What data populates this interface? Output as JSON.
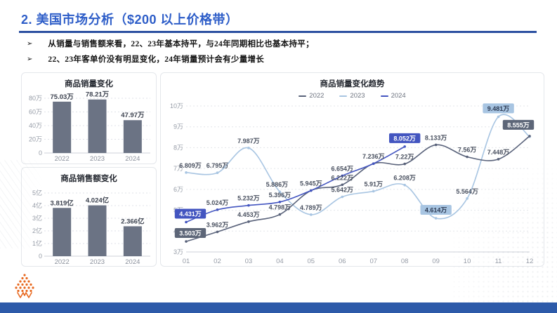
{
  "header": {
    "title": "2. 美国市场分析（$200 以上价格带）"
  },
  "bullets": [
    {
      "marker": "➢",
      "text": "从销量与销售额来看，22、23年基本持平，与24年同期相比也基本持平；"
    },
    {
      "marker": "➢",
      "text": "22、23年客单价没有明显变化，24年销量预计会有少量增长"
    }
  ],
  "colors": {
    "title_blue": "#2d5dc8",
    "rule_blue": "#2b4fa0",
    "footer_blue": "#2d5aa9",
    "bar_fill": "#6b7384",
    "logo_orange": "#e8681f",
    "series_2022": "#59627a",
    "series_2023": "#a8c5e2",
    "series_2024": "#4355c0"
  },
  "chart_data": [
    {
      "type": "bar",
      "title": "商品销量变化",
      "categories": [
        "2022",
        "2023",
        "2024"
      ],
      "values": [
        75.03,
        78.21,
        47.97
      ],
      "bar_labels": [
        "75.03万",
        "78.21万",
        "47.97万"
      ],
      "ymax": 80,
      "yticks": [
        {
          "v": 0,
          "label": "0"
        },
        {
          "v": 20,
          "label": "20万"
        },
        {
          "v": 40,
          "label": "40万"
        },
        {
          "v": 60,
          "label": "60万"
        },
        {
          "v": 80,
          "label": "80万"
        }
      ],
      "bar_color": "#6b7384"
    },
    {
      "type": "bar",
      "title": "商品销售额变化",
      "categories": [
        "2022",
        "2023",
        "2024"
      ],
      "values": [
        3.819,
        4.024,
        2.366
      ],
      "bar_labels": [
        "3.819亿",
        "4.024亿",
        "2.366亿"
      ],
      "ymax": 5,
      "yticks": [
        {
          "v": 0,
          "label": "0"
        },
        {
          "v": 1,
          "label": "1亿"
        },
        {
          "v": 2,
          "label": "2亿"
        },
        {
          "v": 3,
          "label": "3亿"
        },
        {
          "v": 4,
          "label": "4亿"
        },
        {
          "v": 5,
          "label": "5亿"
        }
      ],
      "bar_color": "#6b7384"
    },
    {
      "type": "line",
      "title": "商品销量变化趋势",
      "x_labels": [
        "01",
        "02",
        "03",
        "04",
        "05",
        "06",
        "07",
        "08",
        "09",
        "10",
        "11",
        "12"
      ],
      "ylim": [
        3,
        10
      ],
      "yticks": [
        {
          "v": 3,
          "label": "3万"
        },
        {
          "v": 4,
          "label": "4万"
        },
        {
          "v": 5,
          "label": "5万"
        },
        {
          "v": 6,
          "label": "6万"
        },
        {
          "v": 7,
          "label": "7万"
        },
        {
          "v": 8,
          "label": "8万"
        },
        {
          "v": 9,
          "label": "9万"
        },
        {
          "v": 10,
          "label": "10万"
        }
      ],
      "legend": [
        {
          "label": "2022",
          "color": "#59627a"
        },
        {
          "label": "2023",
          "color": "#a8c5e2"
        },
        {
          "label": "2024",
          "color": "#4355c0"
        }
      ],
      "series": [
        {
          "name": "2023",
          "color": "#a8c5e2",
          "box_bg": "#a8c5e2",
          "box_text": "#2e3c55",
          "points": [
            {
              "m": 1,
              "v": 6.809,
              "label": "6.809万",
              "dx": 6
            },
            {
              "m": 2,
              "v": 6.795,
              "label": "6.795万"
            },
            {
              "m": 3,
              "v": 7.987,
              "label": "7.987万"
            },
            {
              "m": 4,
              "v": 5.886,
              "label": "5.886万",
              "dx": -4
            },
            {
              "m": 5,
              "v": 4.789,
              "label": "4.789万"
            },
            {
              "m": 6,
              "v": 5.642,
              "label": "5.642万"
            },
            {
              "m": 7,
              "v": 5.91,
              "label": "5.91万"
            },
            {
              "m": 8,
              "v": 6.208,
              "label": "6.208万"
            },
            {
              "m": 9,
              "v": 4.614,
              "label": "4.614万",
              "boxed": true
            },
            {
              "m": 10,
              "v": 5.564,
              "label": "5.564万"
            },
            {
              "m": 11,
              "v": 9.481,
              "label": "9.481万",
              "boxed": true
            },
            {
              "m": 12,
              "v": 8.525,
              "label": null
            }
          ]
        },
        {
          "name": "2022",
          "color": "#59627a",
          "box_bg": "#5d6678",
          "box_text": "#ffffff",
          "points": [
            {
              "m": 1,
              "v": 3.503,
              "label": "3.503万",
              "boxed": true,
              "dx": 6
            },
            {
              "m": 2,
              "v": 3.962,
              "label": "3.962万"
            },
            {
              "m": 3,
              "v": 4.453,
              "label": "4.453万"
            },
            {
              "m": 4,
              "v": 4.798,
              "label": "4.798万"
            },
            {
              "m": 5,
              "v": 5.945,
              "label": null
            },
            {
              "m": 6,
              "v": 6.222,
              "label": "6.222万"
            },
            {
              "m": 7,
              "v": 7.236,
              "label": "7.236万"
            },
            {
              "m": 8,
              "v": 7.22,
              "label": "7.22万"
            },
            {
              "m": 9,
              "v": 8.133,
              "label": "8.133万"
            },
            {
              "m": 10,
              "v": 7.56,
              "label": "7.56万"
            },
            {
              "m": 11,
              "v": 7.448,
              "label": "7.448万"
            },
            {
              "m": 12,
              "v": 8.555,
              "label": "8.555万",
              "boxed": true,
              "dx": -16,
              "dy": -4
            }
          ]
        },
        {
          "name": "2024",
          "color": "#4355c0",
          "box_bg": "#4355c0",
          "box_text": "#ffffff",
          "points": [
            {
              "m": 1,
              "v": 4.431,
              "label": "4.431万",
              "boxed": true,
              "dx": 6
            },
            {
              "m": 2,
              "v": 5.024,
              "label": "5.024万"
            },
            {
              "m": 3,
              "v": 5.232,
              "label": "5.232万"
            },
            {
              "m": 4,
              "v": 5.396,
              "label": "5.396万"
            },
            {
              "m": 5,
              "v": 5.945,
              "label": "5.945万"
            },
            {
              "m": 6,
              "v": 6.654,
              "label": "6.654万"
            },
            {
              "m": 7,
              "v": 7.236,
              "label": null
            },
            {
              "m": 8,
              "v": 8.052,
              "label": "8.052万",
              "boxed": true
            }
          ]
        }
      ]
    }
  ]
}
